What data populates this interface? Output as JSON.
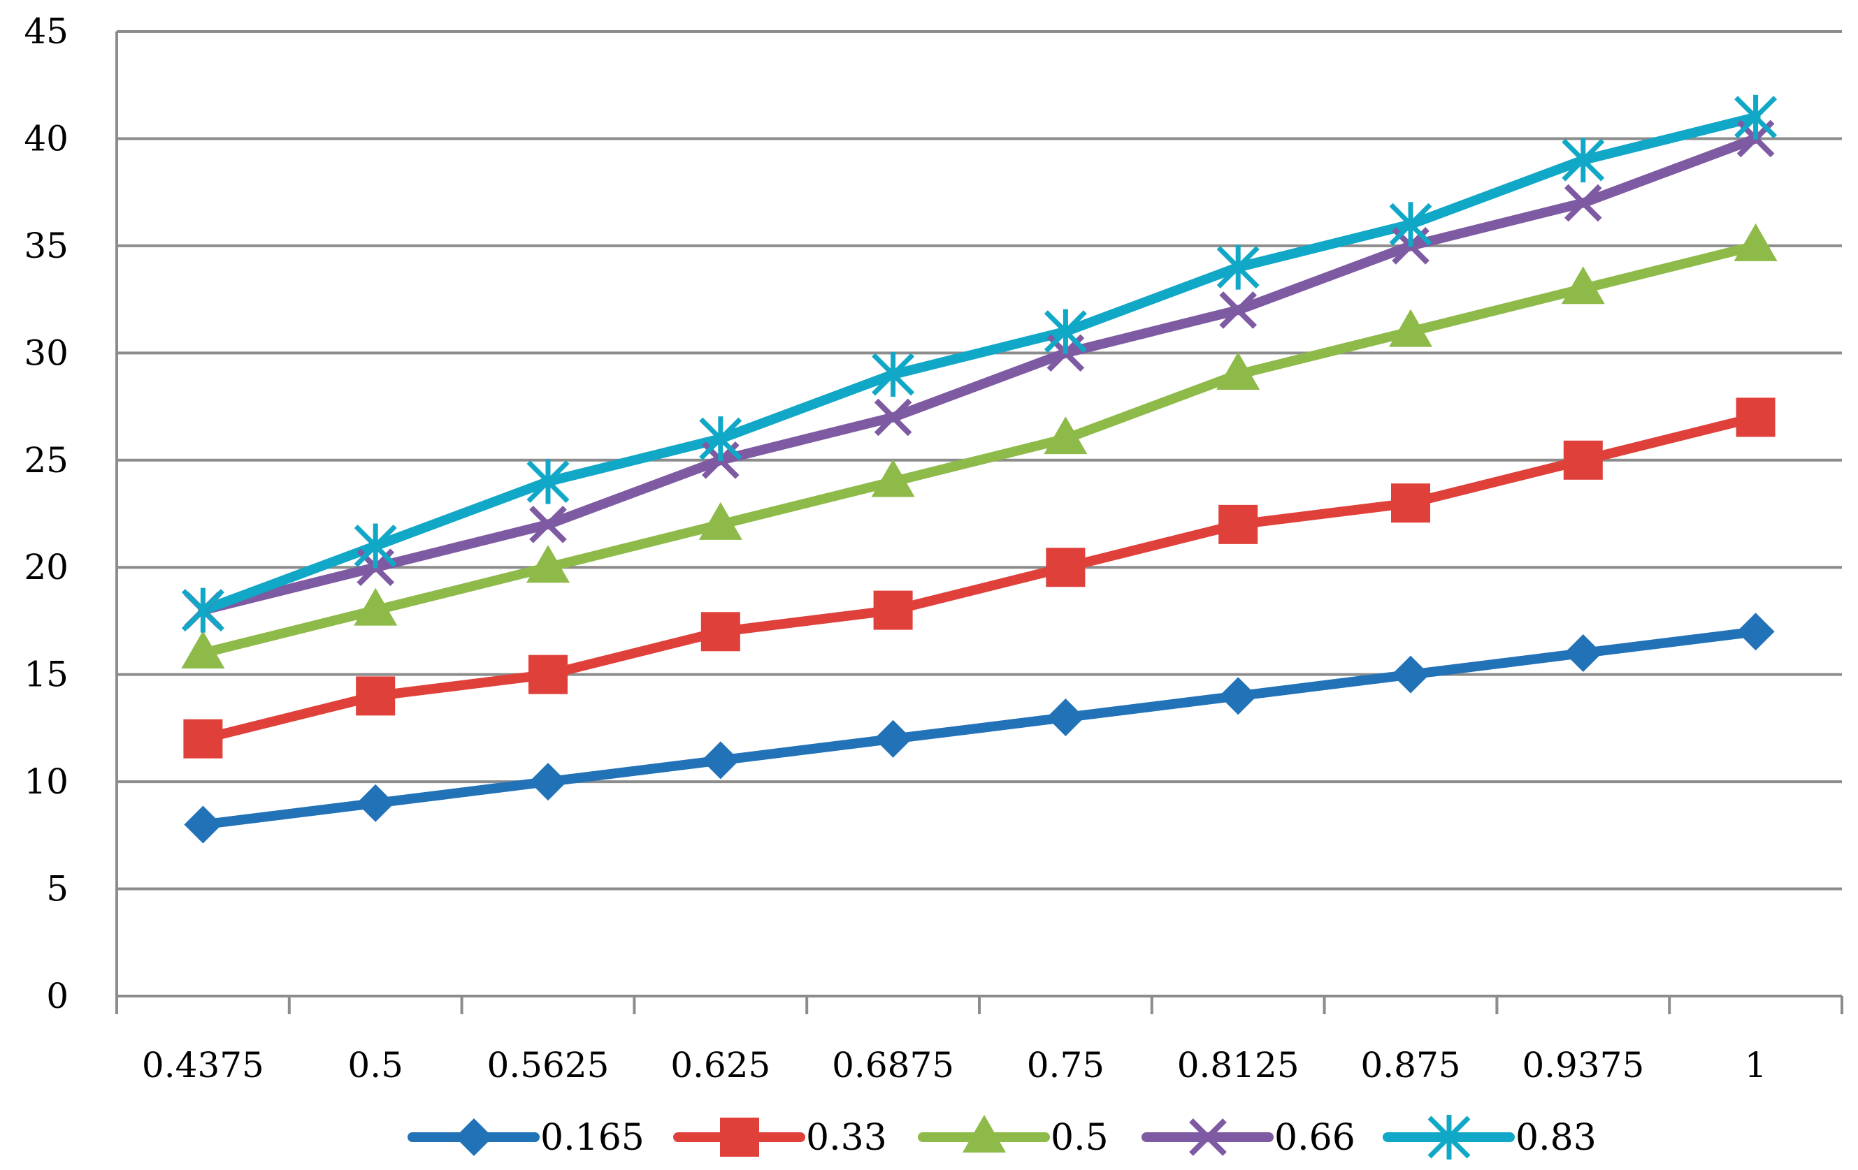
{
  "chart_data": {
    "type": "line",
    "title": "",
    "xlabel": "",
    "ylabel": "",
    "categories": [
      "0.4375",
      "0.5",
      "0.5625",
      "0.625",
      "0.6875",
      "0.75",
      "0.8125",
      "0.875",
      "0.9375",
      "1"
    ],
    "ylim": [
      0,
      45
    ],
    "yticks": [
      "0",
      "5",
      "10",
      "15",
      "20",
      "25",
      "30",
      "35",
      "40",
      "45"
    ],
    "grid": true,
    "legend_position": "bottom",
    "series": [
      {
        "name": "0.165",
        "color": "#2272B8",
        "marker": "diamond",
        "values": [
          8,
          9,
          10,
          11,
          12,
          13,
          14,
          15,
          16,
          17
        ]
      },
      {
        "name": "0.33",
        "color": "#E0403A",
        "marker": "square",
        "values": [
          12,
          14,
          15,
          17,
          18,
          20,
          22,
          23,
          25,
          27
        ]
      },
      {
        "name": "0.5",
        "color": "#8DBA48",
        "marker": "triangle",
        "values": [
          16,
          18,
          20,
          22,
          24,
          26,
          29,
          31,
          33,
          35
        ]
      },
      {
        "name": "0.66",
        "color": "#7E5AA2",
        "marker": "x",
        "values": [
          18,
          20,
          22,
          25,
          27,
          30,
          32,
          35,
          37,
          40
        ]
      },
      {
        "name": "0.83",
        "color": "#10A8C6",
        "marker": "star",
        "values": [
          18,
          21,
          24,
          26,
          29,
          31,
          34,
          36,
          39,
          41
        ]
      }
    ]
  }
}
